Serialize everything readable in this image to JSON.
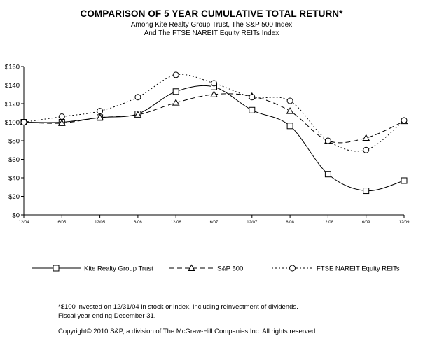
{
  "header": {
    "title": "COMPARISON OF 5 YEAR CUMULATIVE TOTAL RETURN*",
    "subtitle_1": "Among Kite Realty Group Trust, The S&P 500 Index",
    "subtitle_2": "And The FTSE NAREIT Equity REITs Index"
  },
  "footer": {
    "note_1": "*$100 invested on 12/31/04 in stock or index, including reinvestment of dividends.",
    "note_2": "Fiscal year ending December 31.",
    "copyright": "Copyright© 2010 S&P, a division of The McGraw-Hill Companies Inc. All rights reserved."
  },
  "chart_data": {
    "type": "line",
    "title": "COMPARISON OF 5 YEAR CUMULATIVE TOTAL RETURN*",
    "subtitle": "Among Kite Realty Group Trust, The S&P 500 Index And The FTSE NAREIT Equity REITs Index",
    "xlabel": "",
    "ylabel": "",
    "categories": [
      "12/04",
      "6/05",
      "12/05",
      "6/06",
      "12/06",
      "6/07",
      "12/07",
      "6/08",
      "12/08",
      "6/09",
      "12/09"
    ],
    "y_tick_labels": [
      "$0",
      "$20",
      "$40",
      "$60",
      "$80",
      "$100",
      "$120",
      "$140",
      "$160"
    ],
    "ylim": [
      0,
      160
    ],
    "grid": false,
    "legend_position": "bottom",
    "series": [
      {
        "name": "Kite Realty Group Trust",
        "marker": "square",
        "line_style": "solid",
        "values": [
          100,
          100,
          105,
          109,
          133,
          138,
          113,
          96,
          44,
          26,
          37
        ]
      },
      {
        "name": "S&P 500",
        "marker": "triangle",
        "line_style": "dashed",
        "values": [
          100,
          99,
          105,
          108,
          121,
          130,
          128,
          112,
          80,
          83,
          101
        ]
      },
      {
        "name": "FTSE NAREIT Equity REITs",
        "marker": "circle",
        "line_style": "dotted",
        "values": [
          100,
          106,
          112,
          127,
          151,
          142,
          127,
          123,
          80,
          70,
          102
        ]
      }
    ]
  }
}
